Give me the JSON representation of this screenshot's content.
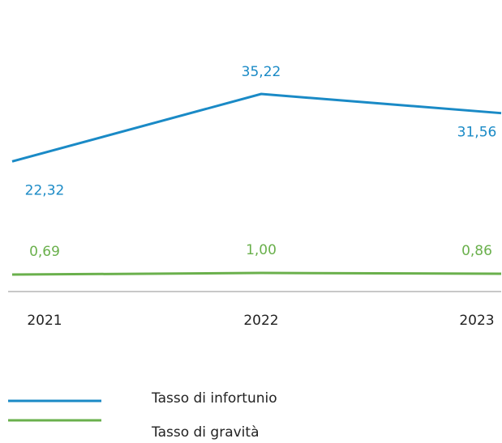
{
  "chart_data": {
    "type": "line",
    "categories": [
      "2021",
      "2022",
      "2023"
    ],
    "series": [
      {
        "name": "Tasso di infortunio",
        "color": "#1a8ac6",
        "values": [
          22.32,
          35.22,
          31.56
        ],
        "value_labels": [
          "22,32",
          "35,22",
          "31,56"
        ]
      },
      {
        "name": "Tasso di gravità",
        "color": "#6ab04c",
        "values": [
          0.69,
          1.0,
          0.86
        ],
        "value_labels": [
          "0,69",
          "1,00",
          "0,86"
        ]
      }
    ]
  }
}
